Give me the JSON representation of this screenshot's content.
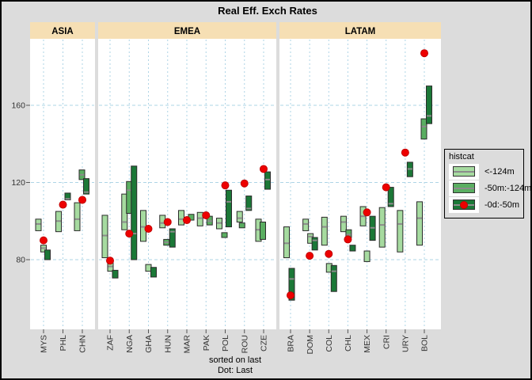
{
  "title": "Real Eff. Exch Rates",
  "caption": {
    "line1": "sorted on last",
    "line2": "Dot: Last"
  },
  "legend": {
    "title": "histcat",
    "items": [
      {
        "label": "<-124m",
        "cat": "light",
        "dot": false
      },
      {
        "label": "-50m:-124m",
        "cat": "mid",
        "dot": false
      },
      {
        "label": "-0d:-50m",
        "cat": "dark",
        "dot": true
      }
    ]
  },
  "colors": {
    "light": "#a6dba0",
    "mid": "#5aae61",
    "dark": "#1b7837",
    "dot": "#ee0000",
    "dot_border": "#c00000",
    "box_border": "#2b2b2b",
    "median": "#8c8c8c",
    "grid": "#aed4e6",
    "strip_bg": "#f6dfb4",
    "panel_bg": "#ffffff",
    "outer_bg": "#dcdcdc",
    "axis_text": "#333333",
    "tick": "#555555"
  },
  "chart_data": {
    "type": "bar",
    "subtype": "faceted floating range bars with last-value dot",
    "title": "Real Eff. Exch Rates",
    "ylabel": "",
    "xlabel": "",
    "y_ticks": [
      80,
      120,
      160
    ],
    "ylim": [
      44,
      194
    ],
    "grid": "dashed light-blue, vertical per country and horizontal per y-tick",
    "legend_position": "right",
    "panels": [
      {
        "label": "ASIA",
        "countries": [
          {
            "code": "MYS",
            "dot": 90,
            "boxes": [
              {
                "cat": "light",
                "lo": 95,
                "hi": 101,
                "median": 98.5,
                "dx": -6.5
              },
              {
                "cat": "light",
                "lo": 84,
                "hi": 87.5,
                "median": 86,
                "dx": 0
              },
              {
                "cat": "dark",
                "lo": 80,
                "hi": 85,
                "dx": 5
              }
            ]
          },
          {
            "code": "PHL",
            "dot": 108.5,
            "boxes": [
              {
                "cat": "light",
                "lo": 94.5,
                "hi": 105,
                "median": 100,
                "dx": -5.5
              },
              {
                "cat": "dark",
                "lo": 111,
                "hi": 114.5,
                "median": 111.5,
                "dx": 6
              }
            ]
          },
          {
            "code": "CHN",
            "dot": 111,
            "boxes": [
              {
                "cat": "light",
                "lo": 95,
                "hi": 109.5,
                "median": 101,
                "dx": -6.5
              },
              {
                "cat": "mid",
                "lo": 121.5,
                "hi": 126.5,
                "median": 124,
                "dx": -0.5
              },
              {
                "cat": "dark",
                "lo": 114,
                "hi": 122,
                "median": 115,
                "dx": 5
              }
            ]
          }
        ]
      },
      {
        "label": "EMEA",
        "countries": [
          {
            "code": "ZAF",
            "dot": 79.5,
            "boxes": [
              {
                "cat": "light",
                "lo": 81,
                "hi": 103,
                "median": 92.5,
                "dx": -6.5
              },
              {
                "cat": "light",
                "lo": 74,
                "hi": 78.5,
                "median": 76.5,
                "dx": 0.5
              },
              {
                "cat": "dark",
                "lo": 70.5,
                "hi": 74.5,
                "dx": 6.5
              }
            ]
          },
          {
            "code": "NGA",
            "dot": 93.5,
            "boxes": [
              {
                "cat": "light",
                "lo": 95.5,
                "hi": 114,
                "median": 99.5,
                "dx": -6
              },
              {
                "cat": "mid",
                "lo": 104,
                "hi": 120.5,
                "median": 116,
                "dx": 0
              },
              {
                "cat": "dark",
                "lo": 80,
                "hi": 128.5,
                "median": 93.5,
                "dx": 6
              }
            ]
          },
          {
            "code": "GHA",
            "dot": 96,
            "boxes": [
              {
                "cat": "light",
                "lo": 89.5,
                "hi": 105.5,
                "median": 97,
                "dx": -6.5
              },
              {
                "cat": "light",
                "lo": 74,
                "hi": 77.5,
                "dx": 0
              },
              {
                "cat": "dark",
                "lo": 71,
                "hi": 76,
                "dx": 6.5
              }
            ]
          },
          {
            "code": "HUN",
            "dot": 99.5,
            "boxes": [
              {
                "cat": "light",
                "lo": 96.5,
                "hi": 103,
                "median": 99,
                "dx": -6.5
              },
              {
                "cat": "mid",
                "lo": 87.5,
                "hi": 90.5,
                "median": 89,
                "dx": -1.5
              },
              {
                "cat": "dark",
                "lo": 86.5,
                "hi": 96,
                "median": 94.5,
                "dx": 6
              }
            ]
          },
          {
            "code": "MAR",
            "dot": 100.5,
            "boxes": [
              {
                "cat": "light",
                "lo": 98,
                "hi": 105.5,
                "median": 101,
                "dx": -7
              },
              {
                "cat": "mid",
                "lo": 100.5,
                "hi": 103.5,
                "dx": 5.5
              }
            ]
          },
          {
            "code": "PAK",
            "dot": 103,
            "boxes": [
              {
                "cat": "light",
                "lo": 97.5,
                "hi": 104.5,
                "median": 101.5,
                "dx": -7.5
              },
              {
                "cat": "mid",
                "lo": 98,
                "hi": 102.5,
                "median": 100,
                "dx": 4.5
              }
            ]
          },
          {
            "code": "POL",
            "dot": 118.5,
            "boxes": [
              {
                "cat": "light",
                "lo": 96,
                "hi": 101.5,
                "median": 99,
                "dx": -7.5
              },
              {
                "cat": "mid",
                "lo": 91.5,
                "hi": 94,
                "dx": -1
              },
              {
                "cat": "dark",
                "lo": 97,
                "hi": 116,
                "median": 110,
                "dx": 4.5
              }
            ]
          },
          {
            "code": "ROU",
            "dot": 119.5,
            "boxes": [
              {
                "cat": "light",
                "lo": 99.5,
                "hi": 105,
                "median": 101.5,
                "dx": -6
              },
              {
                "cat": "mid",
                "lo": 96.5,
                "hi": 99,
                "dx": -3
              },
              {
                "cat": "dark",
                "lo": 105.5,
                "hi": 113,
                "median": 106.5,
                "dx": 5.5
              }
            ]
          },
          {
            "code": "CZE",
            "dot": 127,
            "boxes": [
              {
                "cat": "light",
                "lo": 89.5,
                "hi": 101,
                "median": 95.5,
                "dx": -6.5
              },
              {
                "cat": "mid",
                "lo": 90.5,
                "hi": 99.5,
                "dx": -1
              },
              {
                "cat": "dark",
                "lo": 116.5,
                "hi": 125.5,
                "median": 121.5,
                "dx": 5
              }
            ]
          }
        ]
      },
      {
        "label": "LATAM",
        "countries": [
          {
            "code": "BRA",
            "dot": 61.5,
            "boxes": [
              {
                "cat": "light",
                "lo": 81,
                "hi": 97,
                "median": 88.5,
                "dx": -5
              },
              {
                "cat": "dark",
                "lo": 59,
                "hi": 75.5,
                "median": 70,
                "dx": 1.5
              }
            ]
          },
          {
            "code": "DOM",
            "dot": 82,
            "boxes": [
              {
                "cat": "light",
                "lo": 95,
                "hi": 101,
                "median": 98.5,
                "dx": -5
              },
              {
                "cat": "light",
                "lo": 88.5,
                "hi": 93.5,
                "median": 92,
                "dx": 1
              },
              {
                "cat": "dark",
                "lo": 85,
                "hi": 91.5,
                "median": 90,
                "dx": 6.5
              }
            ]
          },
          {
            "code": "COL",
            "dot": 83,
            "boxes": [
              {
                "cat": "light",
                "lo": 87.5,
                "hi": 102,
                "median": 97,
                "dx": -5.5
              },
              {
                "cat": "light",
                "lo": 73.5,
                "hi": 78,
                "dx": 0.5
              },
              {
                "cat": "dark",
                "lo": 63.5,
                "hi": 77,
                "median": 74,
                "dx": 6.5
              }
            ]
          },
          {
            "code": "CHL",
            "dot": 90.5,
            "boxes": [
              {
                "cat": "light",
                "lo": 94.5,
                "hi": 102.5,
                "median": 99.5,
                "dx": -5.5
              },
              {
                "cat": "mid",
                "lo": 91.5,
                "hi": 95.5,
                "median": 93,
                "dx": 1
              },
              {
                "cat": "dark",
                "lo": 84.5,
                "hi": 87.5,
                "dx": 6
              }
            ]
          },
          {
            "code": "MEX",
            "dot": 104.5,
            "boxes": [
              {
                "cat": "light",
                "lo": 97.5,
                "hi": 107.5,
                "median": 102.5,
                "dx": -5
              },
              {
                "cat": "light",
                "lo": 79,
                "hi": 84.5,
                "dx": 0
              },
              {
                "cat": "dark",
                "lo": 90,
                "hi": 102.5,
                "median": 96.5,
                "dx": 7
              }
            ]
          },
          {
            "code": "CRI",
            "dot": 117.5,
            "boxes": [
              {
                "cat": "light",
                "lo": 86.5,
                "hi": 107,
                "median": 98,
                "dx": -5
              },
              {
                "cat": "dark",
                "lo": 107.5,
                "hi": 117.5,
                "median": 109,
                "dx": 6
              }
            ]
          },
          {
            "code": "URY",
            "dot": 135.5,
            "boxes": [
              {
                "cat": "light",
                "lo": 84,
                "hi": 105.5,
                "median": 98.5,
                "dx": -6.5
              },
              {
                "cat": "dark",
                "lo": 123,
                "hi": 130.5,
                "median": 127,
                "dx": 6
              }
            ]
          },
          {
            "code": "BOL",
            "dot": 187,
            "boxes": [
              {
                "cat": "light",
                "lo": 87.5,
                "hi": 110,
                "median": 101.5,
                "dx": -6
              },
              {
                "cat": "mid",
                "lo": 142.5,
                "hi": 153,
                "median": 149,
                "dx": -0.5
              },
              {
                "cat": "dark",
                "lo": 150.5,
                "hi": 170,
                "median": 154.5,
                "dx": 6
              }
            ]
          }
        ]
      }
    ]
  }
}
